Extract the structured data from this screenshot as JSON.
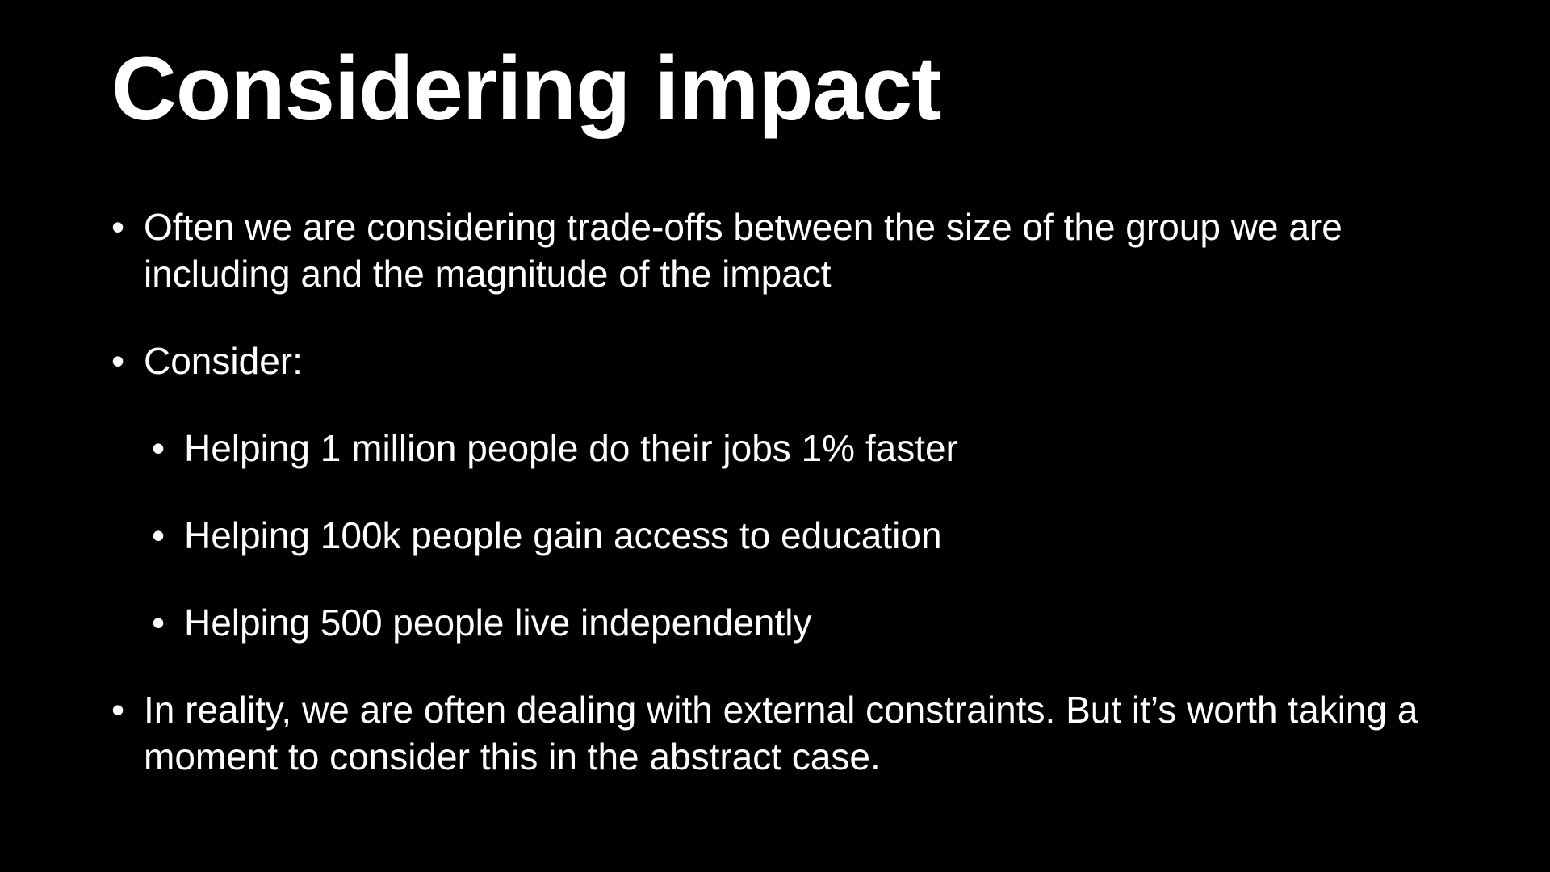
{
  "slide": {
    "title": "Considering impact",
    "bullet_glyph": "•",
    "bullets": [
      {
        "text": "Often we are considering trade-offs between the size of the group we are including and the magnitude of the impact",
        "level": 1
      },
      {
        "text": "Consider:",
        "level": 1
      },
      {
        "text": "Helping 1 million people do their jobs 1% faster",
        "level": 2
      },
      {
        "text": "Helping 100k people gain access to education",
        "level": 2
      },
      {
        "text": "Helping 500 people live independently",
        "level": 2
      },
      {
        "text": "In reality, we are often dealing with external constraints. But it’s worth taking a moment to consider this in the abstract case.",
        "level": 1
      }
    ]
  },
  "colors": {
    "background": "#000000",
    "text": "#ffffff"
  }
}
